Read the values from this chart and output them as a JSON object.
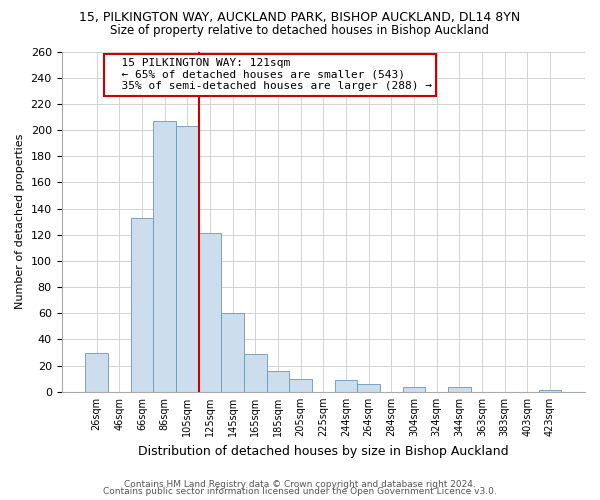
{
  "title_line1": "15, PILKINGTON WAY, AUCKLAND PARK, BISHOP AUCKLAND, DL14 8YN",
  "title_line2": "Size of property relative to detached houses in Bishop Auckland",
  "xlabel": "Distribution of detached houses by size in Bishop Auckland",
  "ylabel": "Number of detached properties",
  "bar_color": "#ccdded",
  "bar_edge_color": "#6699bb",
  "bin_labels": [
    "26sqm",
    "46sqm",
    "66sqm",
    "86sqm",
    "105sqm",
    "125sqm",
    "145sqm",
    "165sqm",
    "185sqm",
    "205sqm",
    "225sqm",
    "244sqm",
    "264sqm",
    "284sqm",
    "304sqm",
    "324sqm",
    "344sqm",
    "363sqm",
    "383sqm",
    "403sqm",
    "423sqm"
  ],
  "bar_heights": [
    30,
    0,
    133,
    207,
    203,
    121,
    60,
    29,
    16,
    10,
    0,
    9,
    6,
    0,
    4,
    0,
    4,
    0,
    0,
    0,
    1
  ],
  "ylim": [
    0,
    260
  ],
  "yticks": [
    0,
    20,
    40,
    60,
    80,
    100,
    120,
    140,
    160,
    180,
    200,
    220,
    240,
    260
  ],
  "vline_color": "#cc0000",
  "annotation_title": "15 PILKINGTON WAY: 121sqm",
  "annotation_line2": "← 65% of detached houses are smaller (543)",
  "annotation_line3": "35% of semi-detached houses are larger (288) →",
  "annotation_box_color": "#ffffff",
  "annotation_box_edge": "#cc0000",
  "footer_line1": "Contains HM Land Registry data © Crown copyright and database right 2024.",
  "footer_line2": "Contains public sector information licensed under the Open Government Licence v3.0.",
  "background_color": "#ffffff",
  "grid_color": "#cccccc"
}
